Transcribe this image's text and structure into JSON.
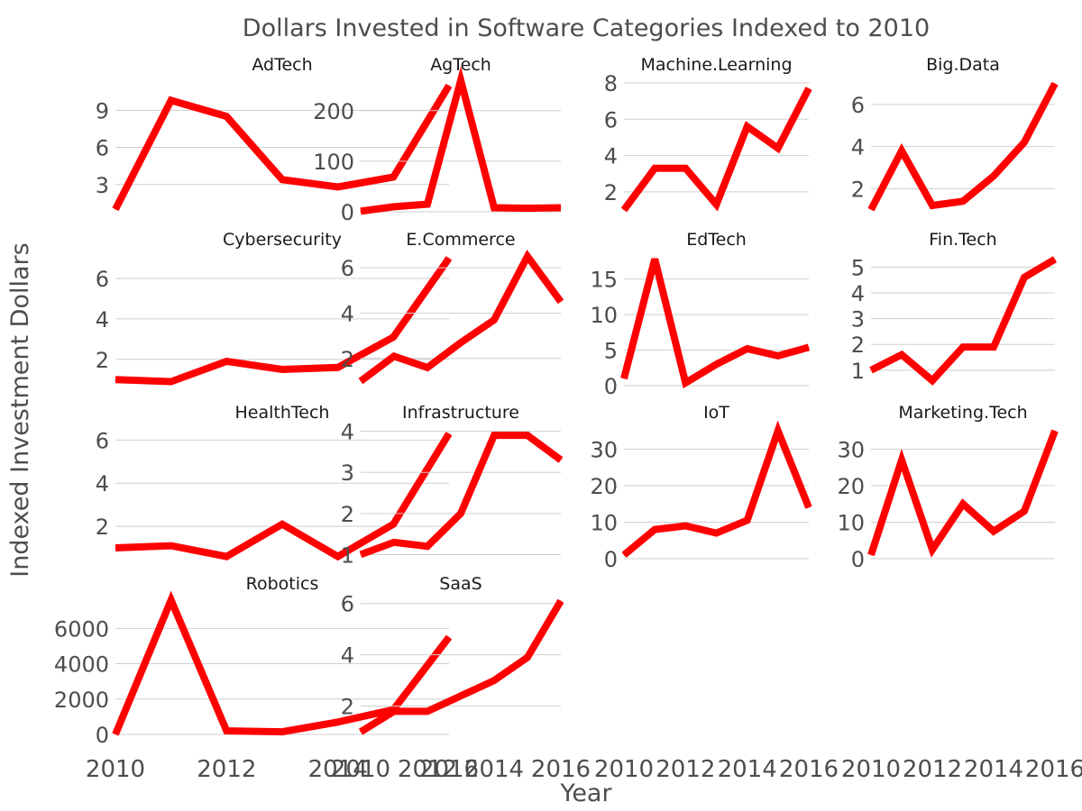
{
  "chart_data": {
    "type": "line",
    "title": "Dollars Invested in Software Categories Indexed to 2010",
    "xlabel": "Year",
    "ylabel": "Indexed Investment Dollars",
    "line_color": "#ff0000",
    "x": [
      2010,
      2011,
      2012,
      2013,
      2014,
      2015,
      2016
    ],
    "x_ticks": [
      "2010",
      "2012",
      "2014",
      "2016"
    ],
    "xlim": [
      2010,
      2016
    ],
    "panels": [
      {
        "name": "AdTech",
        "ylim": [
          0.8,
          11.5
        ],
        "yticks": [
          3,
          6,
          9
        ],
        "values": [
          1.0,
          9.8,
          8.5,
          3.4,
          2.8,
          3.6,
          11.0
        ]
      },
      {
        "name": "AgTech",
        "ylim": [
          0,
          262
        ],
        "yticks": [
          0,
          100,
          200
        ],
        "values": [
          1,
          10,
          15,
          260,
          8,
          7,
          8
        ]
      },
      {
        "name": "Machine.Learning",
        "ylim": [
          0.9,
          8.2
        ],
        "yticks": [
          2,
          4,
          6,
          8
        ],
        "values": [
          1.0,
          3.3,
          3.3,
          1.3,
          5.6,
          4.4,
          7.7
        ]
      },
      {
        "name": "Big.Data",
        "ylim": [
          0.9,
          7.2
        ],
        "yticks": [
          2,
          4,
          6
        ],
        "values": [
          1.0,
          3.8,
          1.2,
          1.4,
          2.6,
          4.2,
          7.0
        ]
      },
      {
        "name": "Cybersecurity",
        "ylim": [
          0.7,
          7.2
        ],
        "yticks": [
          2,
          4,
          6
        ],
        "values": [
          1.0,
          0.9,
          1.9,
          1.5,
          1.6,
          3.1,
          7.0
        ]
      },
      {
        "name": "E.Commerce",
        "ylim": [
          0.8,
          6.6
        ],
        "yticks": [
          2,
          4,
          6
        ],
        "values": [
          1.0,
          2.1,
          1.6,
          2.7,
          3.7,
          6.5,
          4.5
        ]
      },
      {
        "name": "EdTech",
        "ylim": [
          0,
          18.5
        ],
        "yticks": [
          0,
          5,
          10,
          15
        ],
        "values": [
          1.0,
          17.8,
          0.4,
          3.0,
          5.2,
          4.2,
          5.4
        ]
      },
      {
        "name": "Fin.Tech",
        "ylim": [
          0.4,
          5.5
        ],
        "yticks": [
          1,
          2,
          3,
          4,
          5
        ],
        "values": [
          1.0,
          1.6,
          0.6,
          1.9,
          1.9,
          4.6,
          5.3
        ]
      },
      {
        "name": "HealthTech",
        "ylim": [
          0.5,
          6.6
        ],
        "yticks": [
          2,
          4,
          6
        ],
        "values": [
          1.0,
          1.1,
          0.6,
          2.1,
          0.6,
          2.1,
          6.3
        ]
      },
      {
        "name": "Infrastructure",
        "ylim": [
          0.9,
          4.1
        ],
        "yticks": [
          1,
          2,
          3,
          4
        ],
        "values": [
          1.0,
          1.3,
          1.2,
          2.0,
          3.9,
          3.9,
          3.3
        ]
      },
      {
        "name": "IoT",
        "ylim": [
          0,
          36
        ],
        "yticks": [
          0,
          10,
          20,
          30
        ],
        "values": [
          1,
          8,
          9,
          7,
          10.5,
          35,
          14
        ]
      },
      {
        "name": "Marketing.Tech",
        "ylim": [
          0,
          36
        ],
        "yticks": [
          0,
          10,
          20,
          30
        ],
        "values": [
          1,
          27,
          2.5,
          15,
          7.5,
          13,
          35
        ]
      },
      {
        "name": "Robotics",
        "ylim": [
          0,
          7700
        ],
        "yticks": [
          0,
          2000,
          4000,
          6000
        ],
        "values": [
          1,
          7600,
          200,
          150,
          700,
          1400,
          5500
        ]
      },
      {
        "name": "SaaS",
        "ylim": [
          0.9,
          6.2
        ],
        "yticks": [
          2,
          4,
          6
        ],
        "values": [
          1.0,
          1.8,
          1.8,
          2.4,
          3.0,
          3.9,
          6.1
        ]
      }
    ]
  }
}
